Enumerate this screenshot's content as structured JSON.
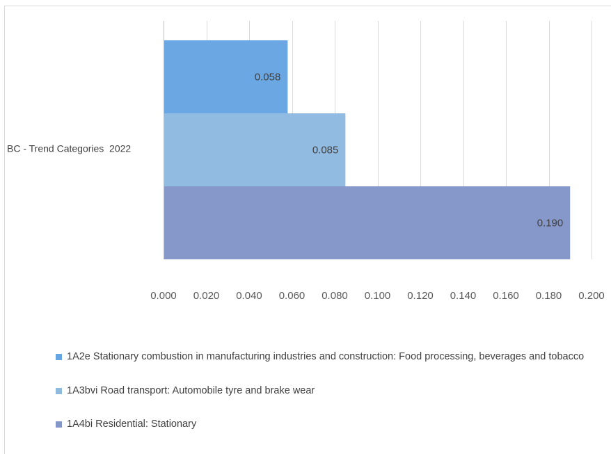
{
  "chart_data": {
    "type": "bar",
    "orientation": "horizontal",
    "categories": [
      "BC - Trend Categories  2022"
    ],
    "series": [
      {
        "name": "1A2e Stationary combustion in manufacturing industries and construction: Food processing, beverages and tobacco",
        "values": [
          0.058
        ],
        "label": "0.058",
        "color": "#67a5e2"
      },
      {
        "name": "1A3bvi Road transport: Automobile tyre and brake wear",
        "values": [
          0.085
        ],
        "label": "0.085",
        "color": "#8fbae0"
      },
      {
        "name": "1A4bi Residential: Stationary",
        "values": [
          0.19
        ],
        "label": "0.190",
        "color": "#8496c8"
      }
    ],
    "xlim": [
      0,
      0.2
    ],
    "xticks": [
      0,
      0.02,
      0.04,
      0.06,
      0.08,
      0.1,
      0.12,
      0.14,
      0.16,
      0.18,
      0.2
    ],
    "xtick_labels": [
      "0.000",
      "0.020",
      "0.040",
      "0.060",
      "0.080",
      "0.100",
      "0.120",
      "0.140",
      "0.160",
      "0.180",
      "0.200"
    ],
    "grid": true,
    "legend_position": "bottom"
  }
}
